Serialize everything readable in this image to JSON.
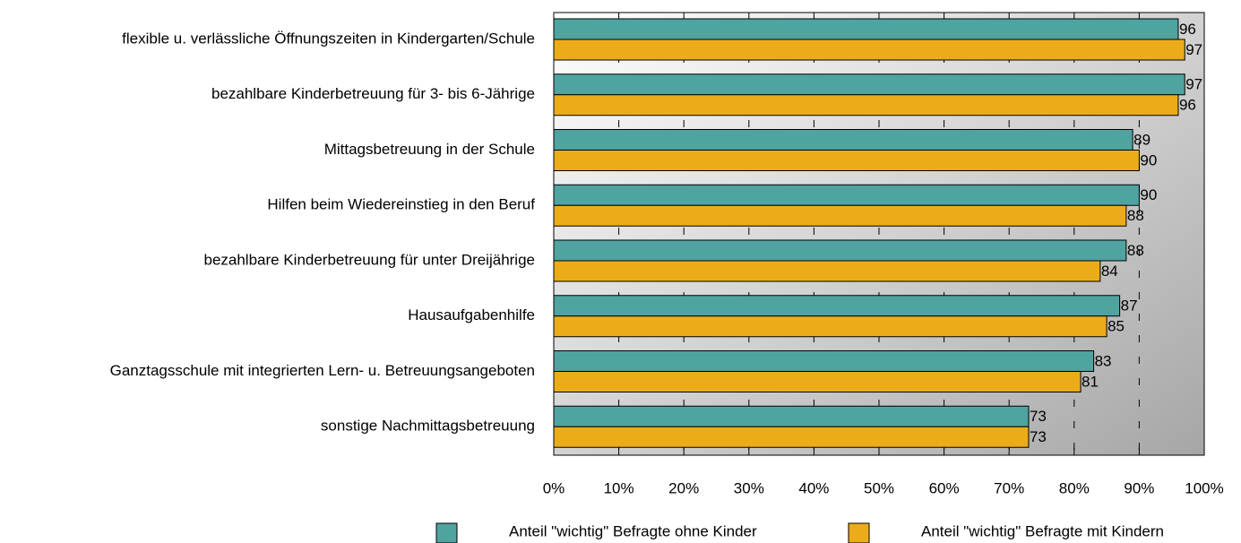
{
  "chart_data": {
    "type": "hbar",
    "categories": [
      "flexible u. verlässliche Öffnungszeiten in Kindergarten/Schule",
      "bezahlbare Kinderbetreuung für 3- bis 6-Jährige",
      "Mittagsbetreuung in der Schule",
      "Hilfen beim Wiedereinstieg in den Beruf",
      "bezahlbare Kinderbetreuung für unter Dreijährige",
      "Hausaufgabenhilfe",
      "Ganztagsschule mit integrierten Lern- u. Betreuungsangeboten",
      "sonstige Nachmittagsbetreuung"
    ],
    "series": [
      {
        "name": "Anteil \"wichtig\" Befragte ohne Kinder",
        "color": "#4fa3a0",
        "values": [
          96,
          97,
          89,
          90,
          88,
          87,
          83,
          73
        ]
      },
      {
        "name": "Anteil \"wichtig\" Befragte mit Kindern",
        "color": "#ecac19",
        "values": [
          97,
          96,
          90,
          88,
          84,
          85,
          81,
          73
        ]
      }
    ],
    "xlim": [
      0,
      100
    ],
    "xticks": [
      {
        "value": 0,
        "label": "0%"
      },
      {
        "value": 10,
        "label": "10%"
      },
      {
        "value": 20,
        "label": "20%"
      },
      {
        "value": 30,
        "label": "30%"
      },
      {
        "value": 40,
        "label": "40%"
      },
      {
        "value": 50,
        "label": "50%"
      },
      {
        "value": 60,
        "label": "60%"
      },
      {
        "value": 70,
        "label": "70%"
      },
      {
        "value": 80,
        "label": "80%"
      },
      {
        "value": 90,
        "label": "90%"
      },
      {
        "value": 100,
        "label": "100%"
      }
    ],
    "grid": true,
    "legend": "bottom"
  }
}
